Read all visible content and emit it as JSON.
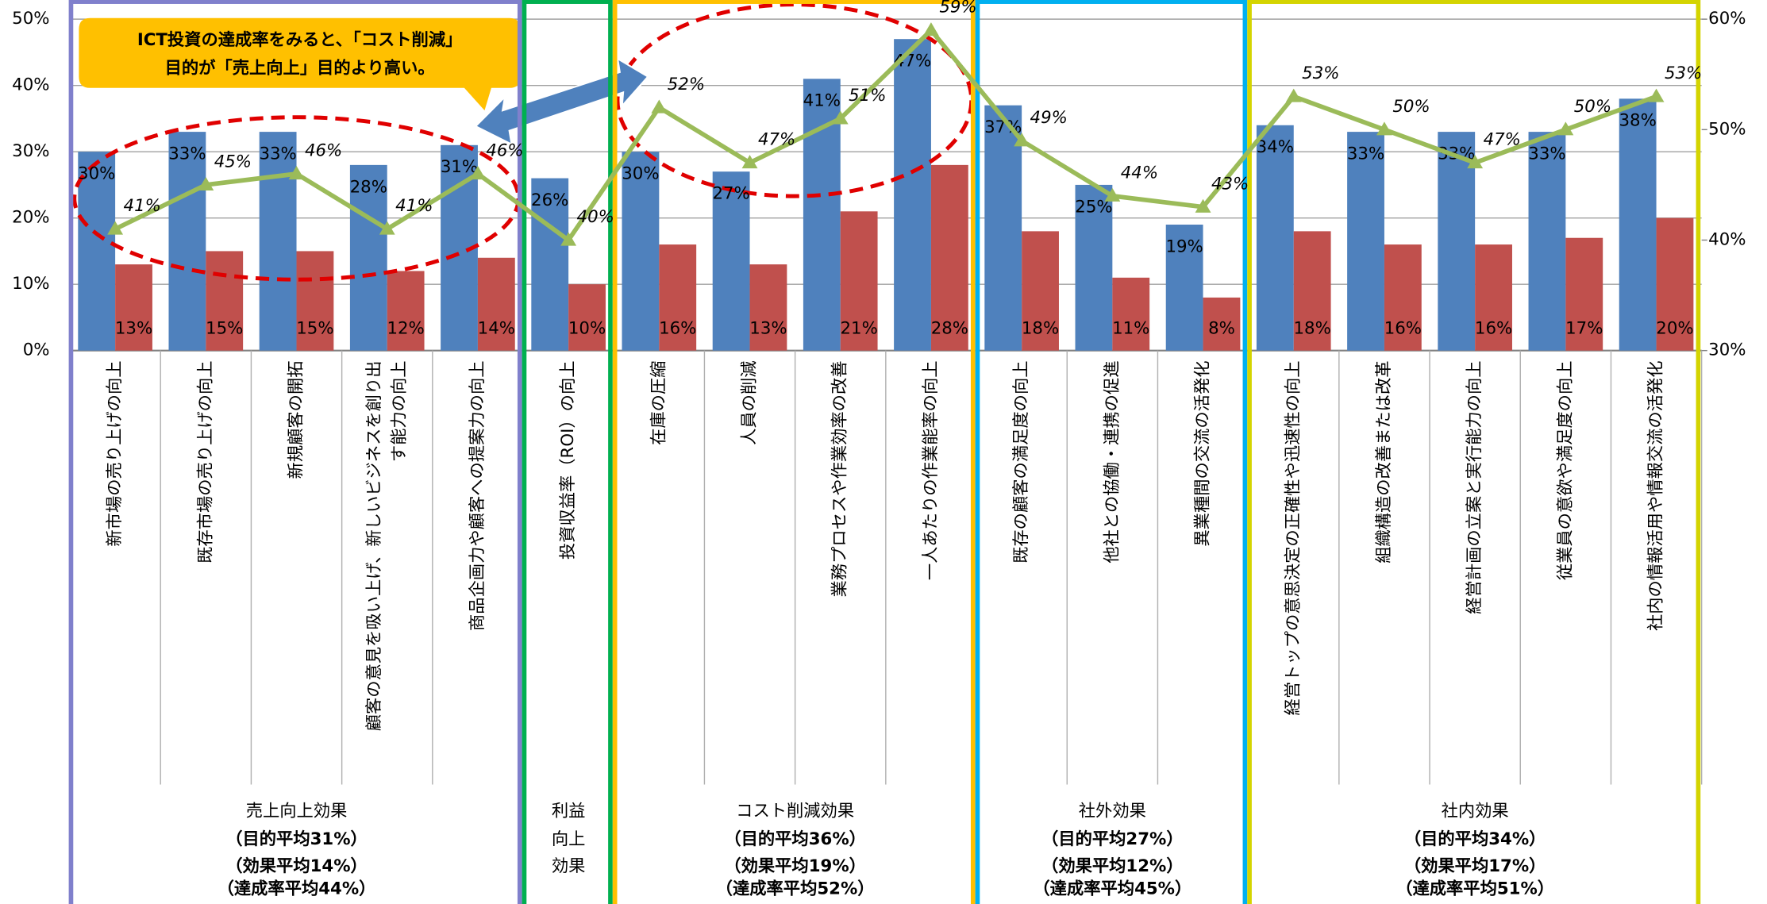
{
  "chart_data": {
    "type": "bar",
    "categories": [
      "新市場の売り上げの向上",
      "既存市場の売り上げの向上",
      "新規顧客の開拓",
      "顧客の意見を吸い上げ、新しいビジネスを創り出す能力の向上",
      "商品企画力や顧客への提案力の向上",
      "投資収益率（ROI）の向上",
      "在庫の圧縮",
      "人員の削減",
      "業務プロセスや作業効率の改善",
      "一人あたりの作業能率の向上",
      "既存の顧客の満足度の向上",
      "他社との協働・連携の促進",
      "異業種間の交流の活発化",
      "経営トップの意思決定の正確性や迅速性の向上",
      "組織構造の改善または改革",
      "経営計画の立案と実行能力の向上",
      "従業員の意欲や満足度の向上",
      "社内の情報活用や情報交流の活発化"
    ],
    "series": [
      {
        "type": "bar",
        "color": "#4f81bd",
        "values": [
          30,
          33,
          33,
          28,
          31,
          26,
          30,
          27,
          41,
          47,
          37,
          25,
          19,
          34,
          33,
          33,
          33,
          38
        ],
        "value_labels": [
          "30%",
          "33%",
          "33%",
          "28%",
          "31%",
          "26%",
          "30%",
          "27%",
          "41%",
          "47%",
          "37%",
          "25%",
          "19%",
          "34%",
          "33%",
          "33%",
          "33%",
          "38%"
        ]
      },
      {
        "type": "bar",
        "color": "#c0504d",
        "values": [
          13,
          15,
          15,
          12,
          14,
          10,
          16,
          13,
          21,
          28,
          18,
          11,
          8,
          18,
          16,
          16,
          17,
          20
        ],
        "value_labels": [
          "13%",
          "15%",
          "15%",
          "12%",
          "14%",
          "10%",
          "16%",
          "13%",
          "21%",
          "28%",
          "18%",
          "11%",
          "8%",
          "18%",
          "16%",
          "16%",
          "17%",
          "20%"
        ]
      },
      {
        "type": "line",
        "color": "#9bbb59",
        "axis": "y2",
        "values": [
          41,
          45,
          46,
          41,
          46,
          40,
          52,
          47,
          51,
          59,
          49,
          44,
          43,
          53,
          50,
          47,
          50,
          53
        ],
        "value_labels": [
          "41%",
          "45%",
          "46%",
          "41%",
          "46%",
          "40%",
          "52%",
          "47%",
          "51%",
          "59%",
          "49%",
          "44%",
          "43%",
          "53%",
          "50%",
          "47%",
          "50%",
          "53%"
        ]
      }
    ],
    "ylim": [
      0,
      50
    ],
    "yticks": [
      {
        "value": 0,
        "label": "0%"
      },
      {
        "value": 10,
        "label": "10%"
      },
      {
        "value": 20,
        "label": "20%"
      },
      {
        "value": 30,
        "label": "30%"
      },
      {
        "value": 40,
        "label": "40%"
      },
      {
        "value": 50,
        "label": "50%"
      }
    ],
    "y2lim": [
      30,
      60
    ],
    "y2ticks": [
      {
        "value": 30,
        "label": "30%"
      },
      {
        "value": 40,
        "label": "40%"
      },
      {
        "value": 50,
        "label": "50%"
      },
      {
        "value": 60,
        "label": "60%"
      }
    ],
    "grid": true,
    "groups": [
      {
        "name": [
          "売上向上効果"
        ],
        "notes": [
          "（目的平均31%）",
          "（効果平均14%）",
          "（達成率平均44%）"
        ],
        "span": 5,
        "color": "#8080cc"
      },
      {
        "name": [
          "利益",
          "向上",
          "効果"
        ],
        "notes": [],
        "span": 1,
        "color": "#00b050"
      },
      {
        "name": [
          "コスト削減効果"
        ],
        "notes": [
          "（目的平均36%）",
          "（効果平均19%）",
          "（達成率平均52%）"
        ],
        "span": 4,
        "color": "#ffc000"
      },
      {
        "name": [
          "社外効果"
        ],
        "notes": [
          "（目的平均27%）",
          "（効果平均12%）",
          "（達成率平均45%）"
        ],
        "span": 3,
        "color": "#00b0f0"
      },
      {
        "name": [
          "社内効果"
        ],
        "notes": [
          "（目的平均34%）",
          "（効果平均17%）",
          "（達成率平均51%）"
        ],
        "span": 5,
        "color": "#d4d400"
      }
    ],
    "annotation": [
      "ICT投資の達成率をみると、「コスト削減」",
      "目的が「売上向上」目的より高い。"
    ]
  }
}
